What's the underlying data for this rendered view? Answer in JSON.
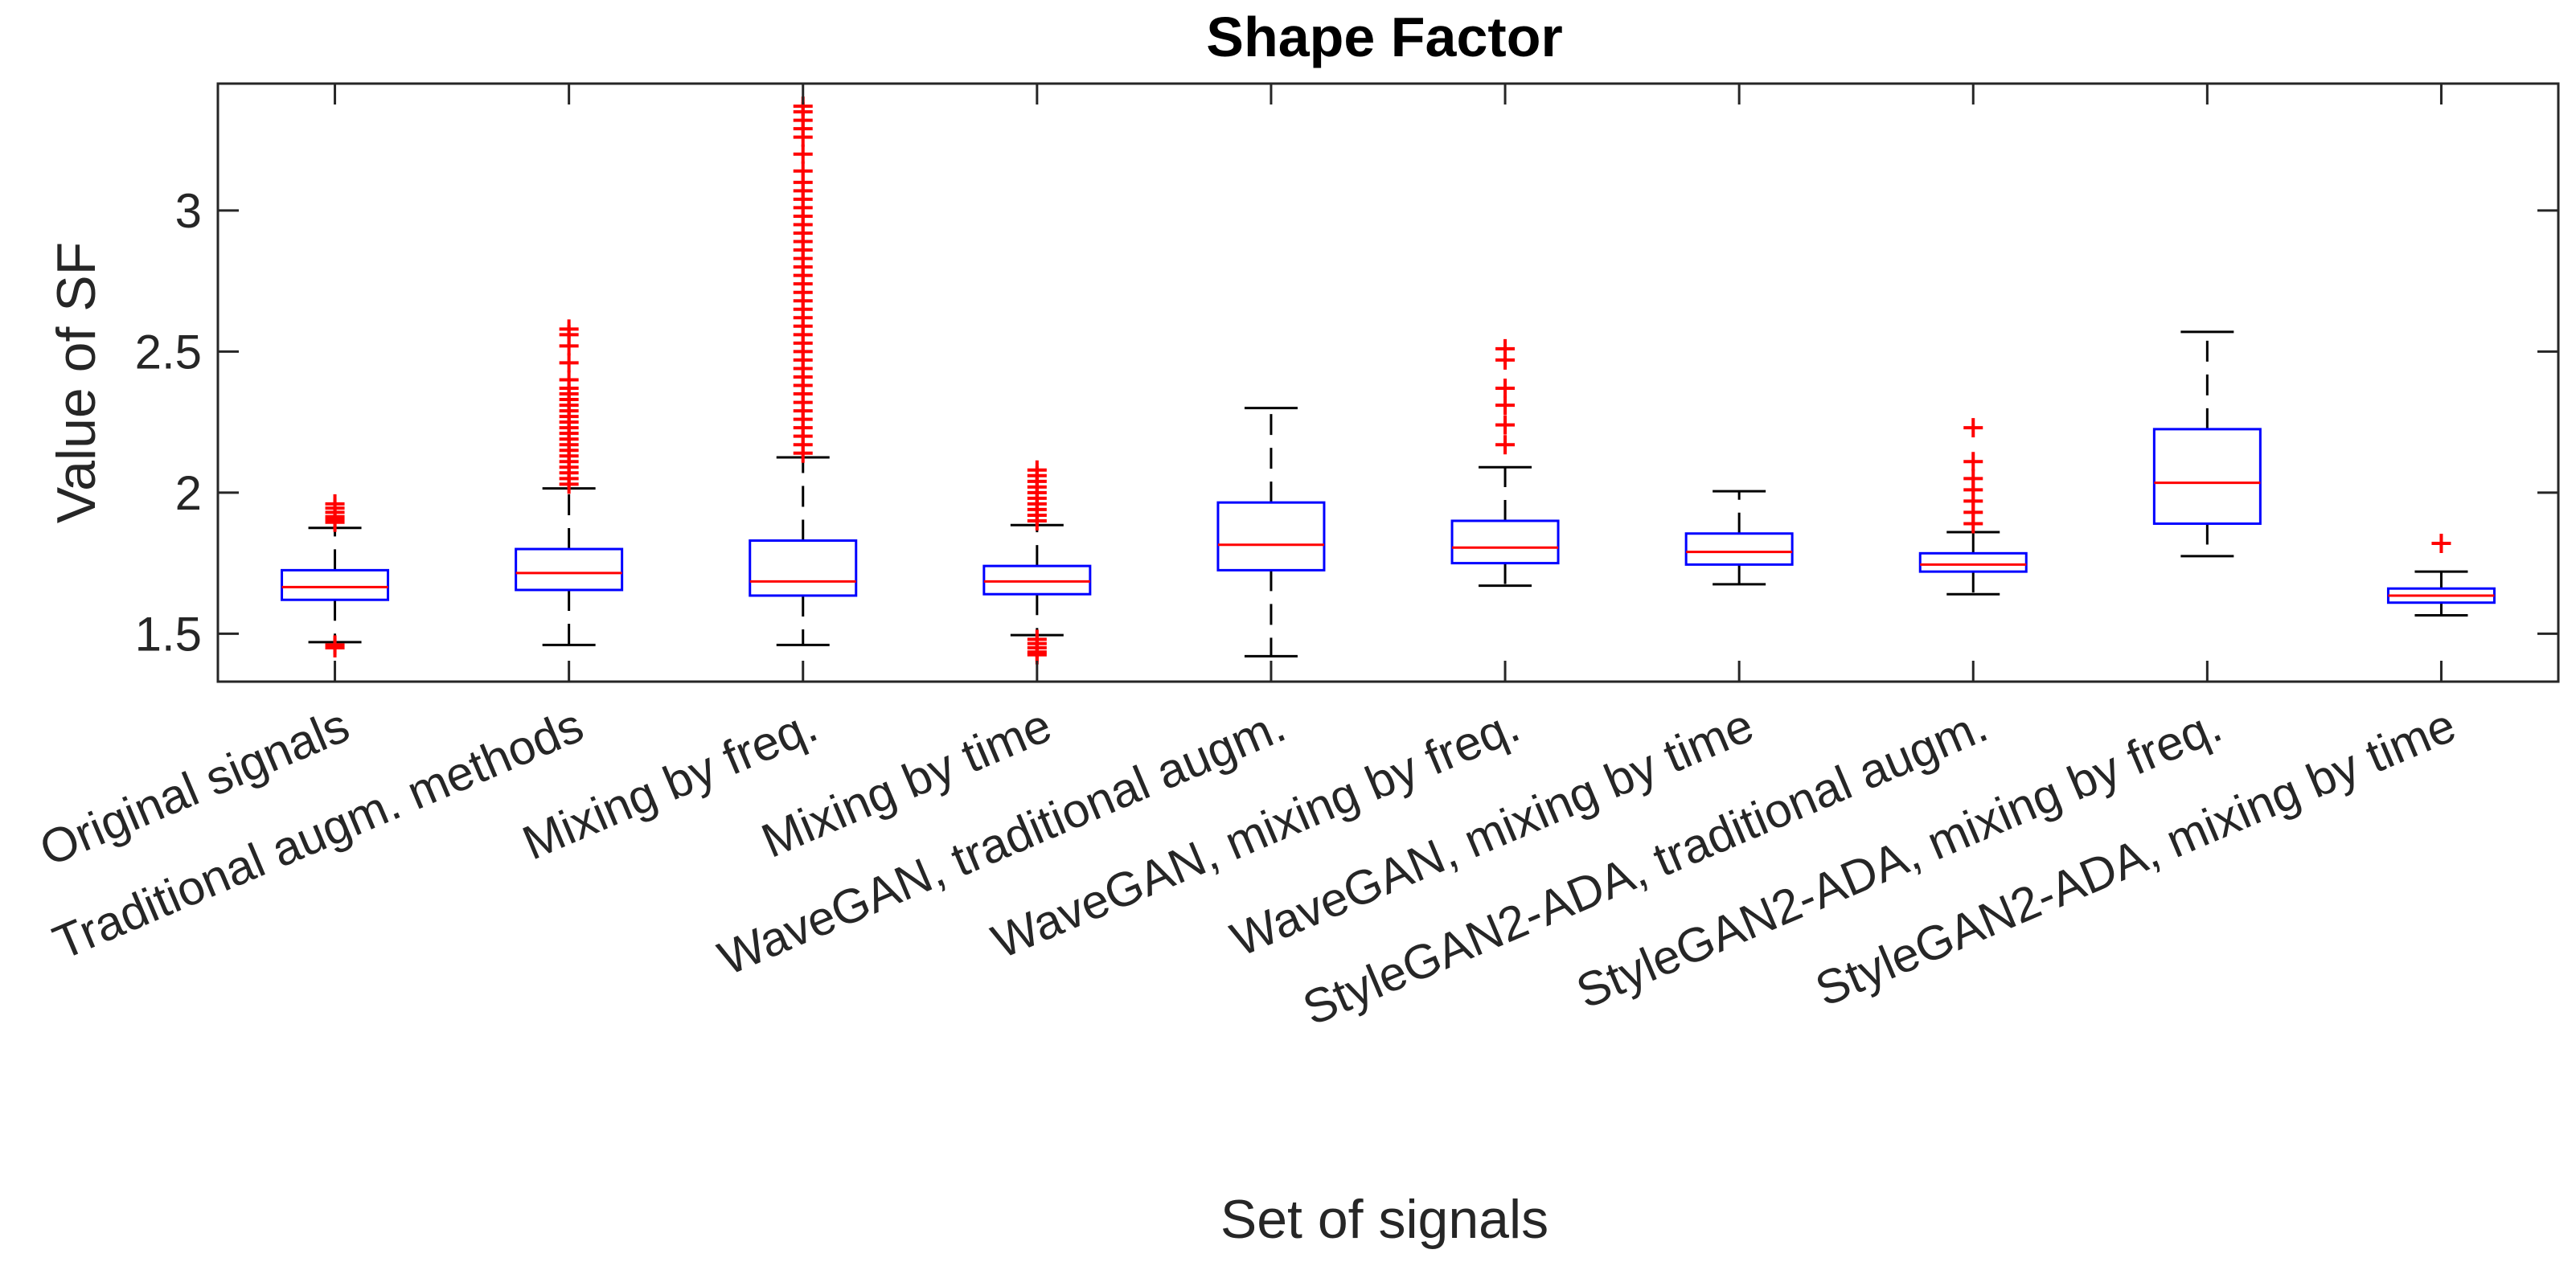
{
  "chart_data": {
    "type": "boxplot",
    "title": "Shape Factor",
    "xlabel": "Set of signals",
    "ylabel": "Value of  SF",
    "ylim": [
      1.33,
      3.45
    ],
    "yticks": [
      1.5,
      2,
      2.5,
      3
    ],
    "ytick_labels": [
      "1.5",
      "2",
      "2.5",
      "3"
    ],
    "box_color": "#0000ff",
    "median_color": "#ff0000",
    "whisker_color": "#000000",
    "outlier_color": "#ff0000",
    "categories": [
      "Original signals",
      "Traditional augm. methods",
      "Mixing by freq.",
      "Mixing by time",
      "WaveGAN, traditional augm.",
      "WaveGAN, mixing by freq.",
      "WaveGAN, mixing by time",
      "StyleGAN2-ADA, traditional augm.",
      "StyleGAN2-ADA, mixing by freq.",
      "StyleGAN2-ADA, mixing by time"
    ],
    "boxes": [
      {
        "whisker_low": 1.47,
        "q1": 1.62,
        "median": 1.665,
        "q3": 1.725,
        "whisker_high": 1.875,
        "outliers": [
          1.895,
          1.905,
          1.915,
          1.93,
          1.945,
          1.96,
          1.46,
          1.45
        ]
      },
      {
        "whisker_low": 1.46,
        "q1": 1.655,
        "median": 1.715,
        "q3": 1.8,
        "whisker_high": 2.015,
        "outliers": [
          2.03,
          2.05,
          2.07,
          2.09,
          2.11,
          2.13,
          2.15,
          2.17,
          2.19,
          2.21,
          2.23,
          2.25,
          2.27,
          2.29,
          2.31,
          2.33,
          2.35,
          2.37,
          2.4,
          2.46,
          2.52,
          2.56,
          2.58
        ]
      },
      {
        "whisker_low": 1.46,
        "q1": 1.635,
        "median": 1.685,
        "q3": 1.83,
        "whisker_high": 2.125,
        "outliers": [
          2.14,
          2.17,
          2.2,
          2.23,
          2.26,
          2.29,
          2.32,
          2.35,
          2.38,
          2.41,
          2.44,
          2.47,
          2.5,
          2.53,
          2.56,
          2.59,
          2.62,
          2.65,
          2.68,
          2.71,
          2.74,
          2.77,
          2.8,
          2.83,
          2.86,
          2.89,
          2.92,
          2.95,
          2.98,
          3.01,
          3.04,
          3.07,
          3.1,
          3.14,
          3.2,
          3.26,
          3.29,
          3.32,
          3.35,
          3.37
        ]
      },
      {
        "whisker_low": 1.495,
        "q1": 1.64,
        "median": 1.685,
        "q3": 1.74,
        "whisker_high": 1.885,
        "outliers": [
          1.9,
          1.92,
          1.94,
          1.96,
          1.98,
          2.0,
          2.02,
          2.04,
          2.06,
          2.08,
          1.48,
          1.465,
          1.45,
          1.435,
          1.425
        ]
      },
      {
        "whisker_low": 1.42,
        "q1": 1.725,
        "median": 1.815,
        "q3": 1.965,
        "whisker_high": 2.3,
        "outliers": []
      },
      {
        "whisker_low": 1.67,
        "q1": 1.75,
        "median": 1.805,
        "q3": 1.9,
        "whisker_high": 2.09,
        "outliers": [
          2.17,
          2.24,
          2.31,
          2.37,
          2.47,
          2.51
        ]
      },
      {
        "whisker_low": 1.675,
        "q1": 1.745,
        "median": 1.79,
        "q3": 1.855,
        "whisker_high": 2.005,
        "outliers": []
      },
      {
        "whisker_low": 1.64,
        "q1": 1.72,
        "median": 1.745,
        "q3": 1.785,
        "whisker_high": 1.86,
        "outliers": [
          1.89,
          1.93,
          1.97,
          2.01,
          2.05,
          2.11,
          2.23
        ]
      },
      {
        "whisker_low": 1.775,
        "q1": 1.89,
        "median": 2.035,
        "q3": 2.225,
        "whisker_high": 2.57,
        "outliers": []
      },
      {
        "whisker_low": 1.565,
        "q1": 1.61,
        "median": 1.635,
        "q3": 1.66,
        "whisker_high": 1.72,
        "outliers": [
          1.82
        ]
      }
    ]
  }
}
